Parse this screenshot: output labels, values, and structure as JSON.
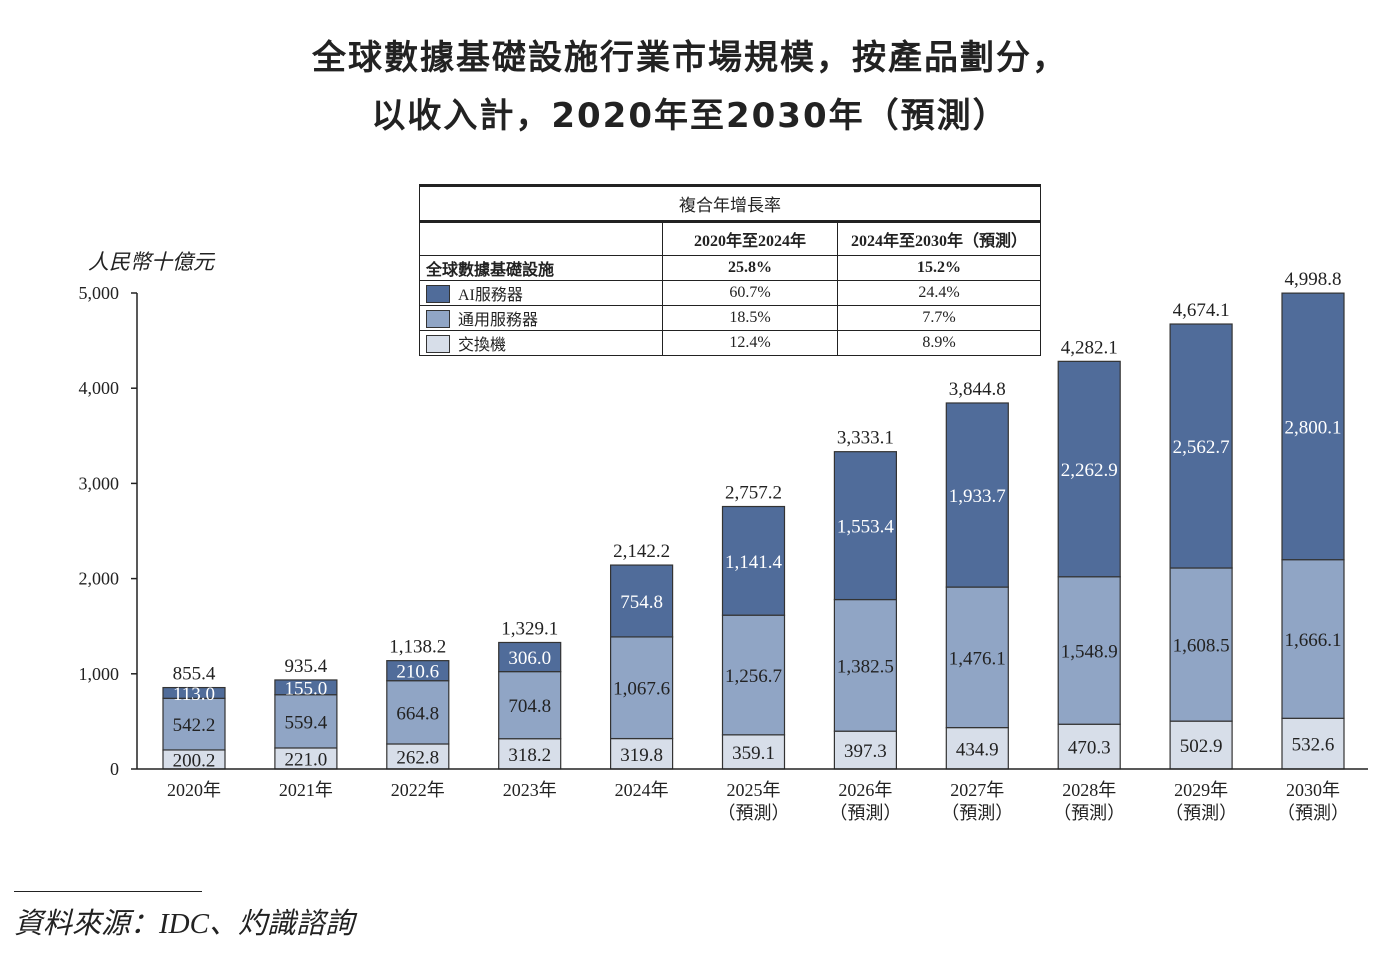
{
  "title_line1": "全球數據基礎設施行業市場規模，按產品劃分，",
  "title_line2": "以收入計，2020年至2030年（預測）",
  "source": "資料來源：IDC、灼識諮詢",
  "colors": {
    "ai_server": "#506c9a",
    "general_server": "#90a5c5",
    "switch": "#d7dee9"
  },
  "cagr_table": {
    "title": "複合年增長率",
    "col1": "2020年至2024年",
    "col2": "2024年至2030年（預測）",
    "rows": [
      {
        "label": "全球數據基礎設施",
        "v1": "25.8%",
        "v2": "15.2%"
      },
      {
        "label": "AI服務器",
        "v1": "60.7%",
        "v2": "24.4%"
      },
      {
        "label": "通用服務器",
        "v1": "18.5%",
        "v2": "7.7%"
      },
      {
        "label": "交換機",
        "v1": "12.4%",
        "v2": "8.9%"
      }
    ]
  },
  "chart_data": {
    "type": "bar",
    "stacked": true,
    "title": "全球數據基礎設施行業市場規模，按產品劃分，以收入計，2020年至2030年（預測）",
    "ylabel": "人民幣十億元",
    "ylim": [
      0,
      5000
    ],
    "yticks": [
      "0",
      "1,000",
      "2,000",
      "3,000",
      "4,000",
      "5,000"
    ],
    "ytick_values": [
      0,
      1000,
      2000,
      3000,
      4000,
      5000
    ],
    "grid": false,
    "legend": "table-top-center",
    "categories": [
      "2020年",
      "2021年",
      "2022年",
      "2023年",
      "2024年",
      "2025年\n（預測）",
      "2026年\n（預測）",
      "2027年\n（預測）",
      "2028年\n（預測）",
      "2029年\n（預測）",
      "2030年\n（預測）"
    ],
    "series": [
      {
        "name": "交換機",
        "values": [
          200.2,
          221.0,
          262.8,
          318.2,
          319.8,
          359.1,
          397.3,
          434.9,
          470.3,
          502.9,
          532.6
        ],
        "labels": [
          "200.2",
          "221.0",
          "262.8",
          "318.2",
          "319.8",
          "359.1",
          "397.3",
          "434.9",
          "470.3",
          "502.9",
          "532.6"
        ]
      },
      {
        "name": "通用服務器",
        "values": [
          542.2,
          559.4,
          664.8,
          704.8,
          1067.6,
          1256.7,
          1382.5,
          1476.1,
          1548.9,
          1608.5,
          1666.1
        ],
        "labels": [
          "542.2",
          "559.4",
          "664.8",
          "704.8",
          "1,067.6",
          "1,256.7",
          "1,382.5",
          "1,476.1",
          "1,548.9",
          "1,608.5",
          "1,666.1"
        ]
      },
      {
        "name": "AI服務器",
        "values": [
          113.0,
          155.0,
          210.6,
          306.0,
          754.8,
          1141.4,
          1553.4,
          1933.7,
          2262.9,
          2562.7,
          2800.1
        ],
        "labels": [
          "113.0",
          "155.0",
          "210.6",
          "306.0",
          "754.8",
          "1,141.4",
          "1,553.4",
          "1,933.7",
          "2,262.9",
          "2,562.7",
          "2,800.1"
        ]
      }
    ],
    "totals": [
      855.4,
      935.4,
      1138.2,
      1329.1,
      2142.2,
      2757.2,
      3333.1,
      3844.8,
      4282.1,
      4674.1,
      4998.8
    ],
    "total_labels": [
      "855.4",
      "935.4",
      "1,138.2",
      "1,329.1",
      "2,142.2",
      "2,757.2",
      "3,333.1",
      "3,844.8",
      "4,282.1",
      "4,674.1",
      "4,998.8"
    ]
  }
}
